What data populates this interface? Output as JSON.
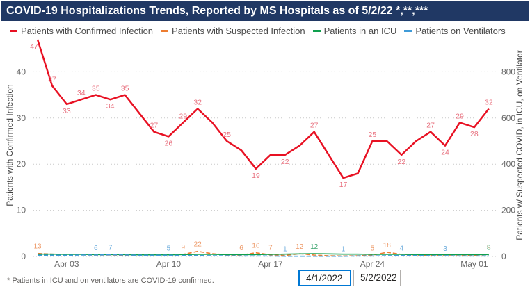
{
  "header": {
    "title": "COVID-19 Hospitalizations Trends, Reported by MS Hospitals as of 5/2/22 *,**,***"
  },
  "theme": {
    "title_bar_bg": "#203864",
    "grid_color": "#c9c9c9",
    "tick_color": "#666666"
  },
  "chart_data": {
    "type": "line",
    "dates": [
      "Apr 01",
      "Apr 02",
      "Apr 03",
      "Apr 04",
      "Apr 05",
      "Apr 06",
      "Apr 07",
      "Apr 08",
      "Apr 09",
      "Apr 10",
      "Apr 11",
      "Apr 12",
      "Apr 13",
      "Apr 14",
      "Apr 15",
      "Apr 16",
      "Apr 17",
      "Apr 18",
      "Apr 19",
      "Apr 20",
      "Apr 21",
      "Apr 22",
      "Apr 23",
      "Apr 24",
      "Apr 25",
      "Apr 26",
      "Apr 27",
      "Apr 28",
      "Apr 29",
      "Apr 30",
      "May 01",
      "May 02"
    ],
    "x_ticks": [
      {
        "label": "Apr 03",
        "day": 3
      },
      {
        "label": "Apr 10",
        "day": 10
      },
      {
        "label": "Apr 17",
        "day": 17
      },
      {
        "label": "Apr 24",
        "day": 24
      },
      {
        "label": "May 01",
        "day": 31
      }
    ],
    "left_axis": {
      "title": "Patients with Confirmed Infection",
      "ticks": [
        0,
        10,
        20,
        30,
        40
      ],
      "range": [
        0,
        47.5
      ]
    },
    "right_axis": {
      "title": "Patients w/ Suspected COVID, in ICU, on Ventilator",
      "ticks": [
        0,
        200,
        400,
        600,
        800
      ],
      "range": [
        0,
        950
      ]
    },
    "legend_position": "top",
    "grid": "dotted horizontal",
    "series": [
      {
        "name": "Patients with Confirmed Infection",
        "axis": "left",
        "color": "#e81123",
        "label_color": "#e8707e",
        "line_style": "solid",
        "width": 2.5,
        "values": [
          47,
          37,
          33,
          34,
          35,
          34,
          35,
          31,
          27,
          26,
          29,
          32,
          29,
          25,
          23,
          19,
          22,
          22,
          24,
          27,
          22,
          17,
          18,
          25,
          25,
          22,
          25,
          27,
          24,
          29,
          28,
          32
        ],
        "labels": [
          {
            "day": 1,
            "pos": "below",
            "dx": -5
          },
          {
            "day": 2,
            "pos": "above"
          },
          {
            "day": 3,
            "pos": "below"
          },
          {
            "day": 4,
            "pos": "above"
          },
          {
            "day": 5,
            "pos": "above"
          },
          {
            "day": 6,
            "pos": "below"
          },
          {
            "day": 7,
            "pos": "above"
          },
          {
            "day": 9,
            "pos": "above"
          },
          {
            "day": 10,
            "pos": "below"
          },
          {
            "day": 11,
            "pos": "above"
          },
          {
            "day": 12,
            "pos": "above"
          },
          {
            "day": 14,
            "pos": "above"
          },
          {
            "day": 16,
            "pos": "below"
          },
          {
            "day": 18,
            "pos": "below"
          },
          {
            "day": 20,
            "pos": "above"
          },
          {
            "day": 22,
            "pos": "below"
          },
          {
            "day": 24,
            "pos": "above"
          },
          {
            "day": 26,
            "pos": "below"
          },
          {
            "day": 28,
            "pos": "above"
          },
          {
            "day": 29,
            "pos": "below"
          },
          {
            "day": 30,
            "pos": "above"
          },
          {
            "day": 31,
            "pos": "below"
          },
          {
            "day": 32,
            "pos": "above"
          }
        ]
      },
      {
        "name": "Patients with Suspected Infection",
        "axis": "right",
        "color": "#ed7d31",
        "label_color": "#ed9866",
        "line_style": "dashed",
        "width": 1.6,
        "values": [
          13,
          10,
          8,
          7,
          6,
          6,
          5,
          5,
          4,
          4,
          9,
          22,
          12,
          7,
          6,
          16,
          7,
          4,
          12,
          6,
          3,
          2,
          3,
          5,
          18,
          9,
          6,
          4,
          3,
          3,
          5,
          9
        ],
        "labels": [
          {
            "day": 1
          },
          {
            "day": 11
          },
          {
            "day": 12
          },
          {
            "day": 15
          },
          {
            "day": 16
          },
          {
            "day": 17
          },
          {
            "day": 19
          },
          {
            "day": 24
          },
          {
            "day": 25
          },
          {
            "day": 32
          }
        ]
      },
      {
        "name": "Patients in an ICU",
        "axis": "right",
        "color": "#10a04e",
        "label_color": "#3da56f",
        "line_style": "solid",
        "width": 1.6,
        "values": [
          10,
          10,
          9,
          9,
          8,
          8,
          8,
          7,
          7,
          7,
          8,
          9,
          9,
          8,
          8,
          8,
          9,
          10,
          11,
          12,
          11,
          10,
          10,
          9,
          9,
          9,
          8,
          8,
          8,
          8,
          8,
          8
        ],
        "labels": [
          {
            "day": 20
          },
          {
            "day": 32
          }
        ]
      },
      {
        "name": "Patients on Ventilators",
        "axis": "right",
        "color": "#3f9bd8",
        "label_color": "#6faedd",
        "line_style": "dashed",
        "width": 1.6,
        "values": [
          5,
          5,
          5,
          6,
          6,
          7,
          6,
          5,
          5,
          5,
          4,
          4,
          3,
          3,
          2,
          2,
          2,
          1,
          1,
          1,
          1,
          1,
          2,
          2,
          3,
          4,
          4,
          3,
          3,
          2,
          2,
          2
        ],
        "labels": [
          {
            "day": 5
          },
          {
            "day": 6
          },
          {
            "day": 10
          },
          {
            "day": 18
          },
          {
            "day": 22
          },
          {
            "day": 26
          },
          {
            "day": 29
          }
        ]
      }
    ]
  },
  "footnote": "* Patients in ICU and on ventilators are COVID-19 confirmed.",
  "date_filters": {
    "start_value": "4/1/2022",
    "end_value": "5/2/2022"
  }
}
